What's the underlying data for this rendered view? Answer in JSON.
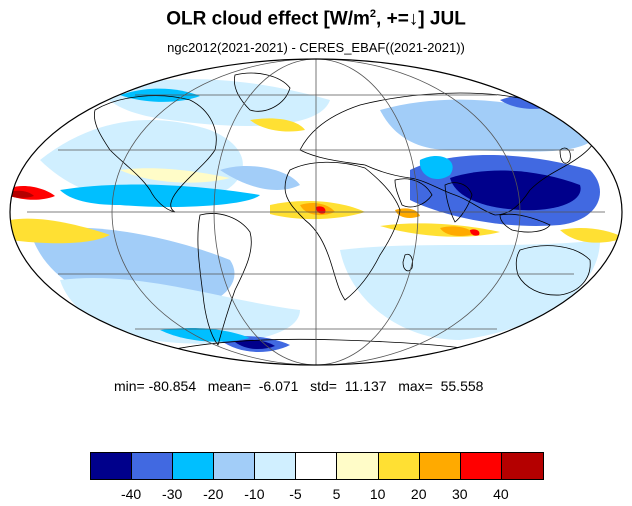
{
  "title": {
    "main": "OLR cloud effect [W/m",
    "superscript": "2",
    "suffix": ", +=↓]  JUL"
  },
  "subtitle": "ngc2012(2021-2021) - CERES_EBAF((2021-2021))",
  "stats": {
    "text": "min= -80.854   mean=  -6.071   std=  11.137   max=  55.558",
    "min": -80.854,
    "mean": -6.071,
    "std": 11.137,
    "max": 55.558
  },
  "map": {
    "projection": "Mollweide",
    "graticule_lat": [
      -60,
      -30,
      0,
      30,
      60
    ],
    "graticule_lon": [
      -120,
      -60,
      0,
      60,
      120
    ]
  },
  "colorbar": {
    "colors": [
      "#00008b",
      "#4169e1",
      "#00bfff",
      "#a2cdf8",
      "#d0efff",
      "#ffffff",
      "#fffcc8",
      "#ffe033",
      "#ffaa00",
      "#ff0000",
      "#b40000"
    ],
    "tick_labels": [
      "-40",
      "-30",
      "-20",
      "-10",
      "-5",
      "5",
      "10",
      "20",
      "30",
      "40"
    ]
  }
}
